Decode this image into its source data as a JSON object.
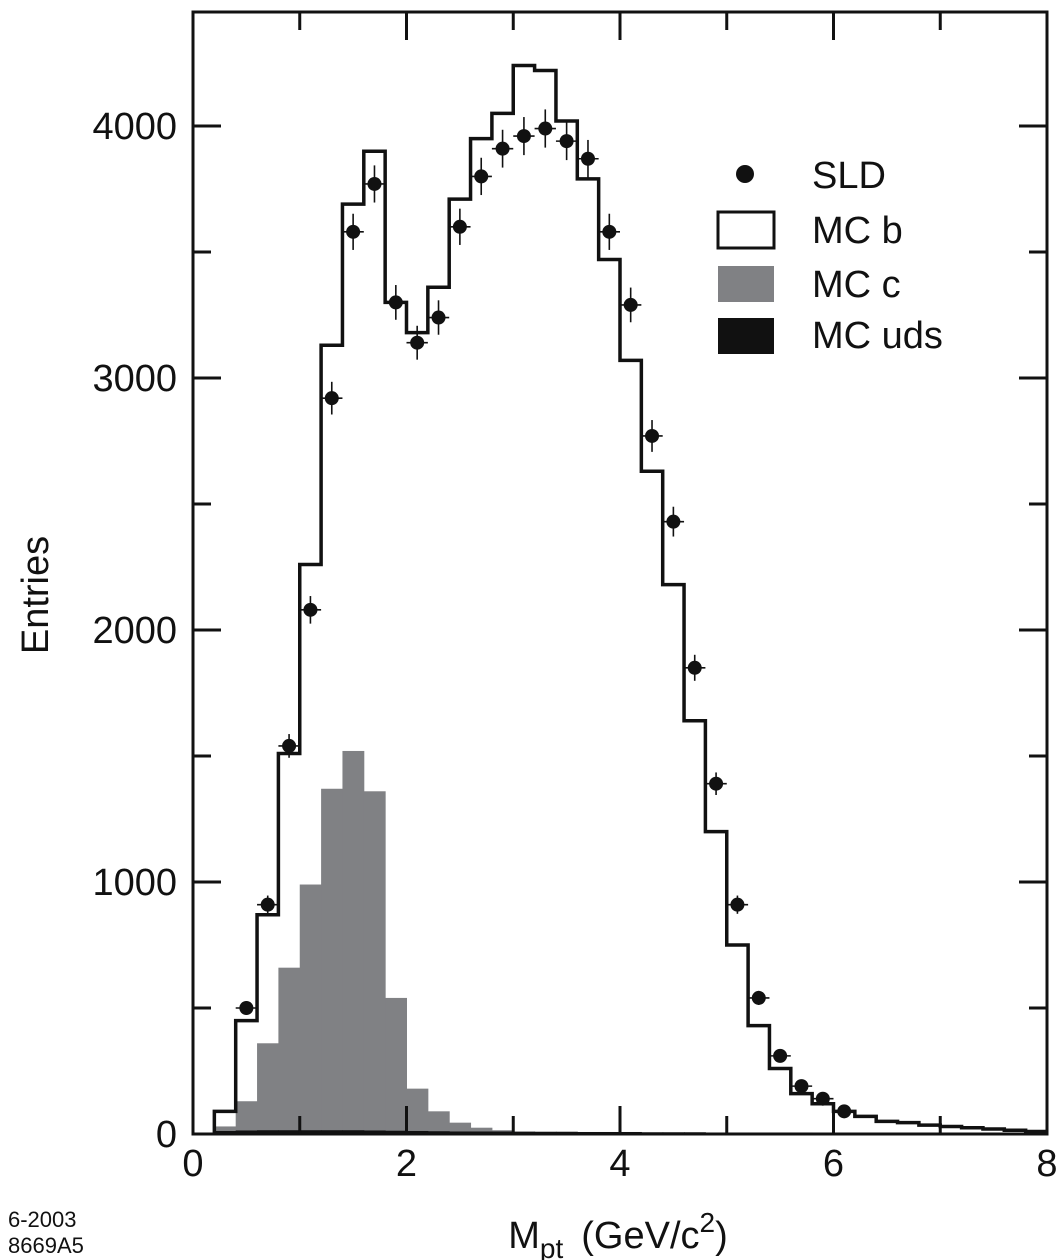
{
  "chart_data": {
    "type": "histogram",
    "xlabel": {
      "main": "M",
      "sub": "pt",
      "unit_pre": "(GeV/c",
      "unit_sup": "2",
      "unit_post": ")"
    },
    "ylabel": "Entries",
    "xlim": [
      0,
      8
    ],
    "ylim": [
      0,
      4400
    ],
    "x_ticks": [
      0,
      2,
      4,
      6,
      8
    ],
    "y_ticks": [
      0,
      1000,
      2000,
      3000,
      4000
    ],
    "bin_edges": [
      0.2,
      0.4,
      0.6,
      0.8,
      1.0,
      1.2,
      1.4,
      1.6,
      1.8,
      2.0,
      2.2,
      2.4,
      2.6,
      2.8,
      3.0,
      3.2,
      3.4,
      3.6,
      3.8,
      4.0,
      4.2,
      4.4,
      4.6,
      4.8,
      5.0,
      5.2,
      5.4,
      5.6,
      5.8,
      6.0,
      6.2,
      6.4,
      6.6,
      6.8,
      7.0,
      7.2,
      7.4,
      7.6,
      7.8,
      8.0
    ],
    "series": [
      {
        "name": "SLD",
        "kind": "points",
        "x": [
          0.5,
          0.7,
          0.9,
          1.1,
          1.3,
          1.5,
          1.7,
          1.9,
          2.1,
          2.3,
          2.5,
          2.7,
          2.9,
          3.1,
          3.3,
          3.5,
          3.7,
          3.9,
          4.1,
          4.3,
          4.5,
          4.7,
          4.9,
          5.1,
          5.3,
          5.5,
          5.7,
          5.9,
          6.1
        ],
        "y": [
          500,
          910,
          1540,
          2080,
          2920,
          3580,
          3770,
          3300,
          3140,
          3240,
          3600,
          3800,
          3910,
          3960,
          3990,
          3940,
          3870,
          3580,
          3290,
          2770,
          2430,
          1850,
          1390,
          910,
          540,
          310,
          190,
          140,
          90
        ]
      },
      {
        "name": "MC b",
        "kind": "step",
        "color": "#111111",
        "values": [
          90,
          450,
          870,
          1510,
          2260,
          3130,
          3690,
          3900,
          3300,
          3180,
          3360,
          3710,
          3950,
          4050,
          4240,
          4220,
          4020,
          3790,
          3470,
          3070,
          2630,
          2180,
          1640,
          1200,
          750,
          430,
          260,
          160,
          120,
          90,
          70,
          50,
          45,
          35,
          30,
          25,
          20,
          15,
          10
        ]
      },
      {
        "name": "MC c",
        "kind": "filled",
        "color": "#808184",
        "values": [
          30,
          130,
          360,
          660,
          990,
          1370,
          1520,
          1360,
          540,
          180,
          90,
          45,
          25,
          15,
          10,
          8,
          5,
          5,
          4,
          4,
          3,
          3,
          2,
          2,
          2,
          2,
          1,
          1,
          1,
          1,
          1,
          1,
          1,
          1,
          1,
          1,
          1,
          1,
          1
        ]
      },
      {
        "name": "MC uds",
        "kind": "filled",
        "color": "#111111",
        "values": [
          12,
          14,
          15,
          15,
          15,
          15,
          15,
          14,
          13,
          12,
          11,
          10,
          10,
          10,
          9,
          9,
          9,
          8,
          8,
          8,
          7,
          7,
          7,
          6,
          6,
          6,
          6,
          6,
          5,
          5,
          5,
          5,
          5,
          5,
          4,
          4,
          4,
          4,
          4
        ]
      }
    ],
    "legend": {
      "position": "top-right",
      "entries": [
        "SLD",
        "MC b",
        "MC c",
        "MC uds"
      ]
    },
    "grid": false
  },
  "footer": {
    "date": "6-2003",
    "code": "8669A5"
  }
}
